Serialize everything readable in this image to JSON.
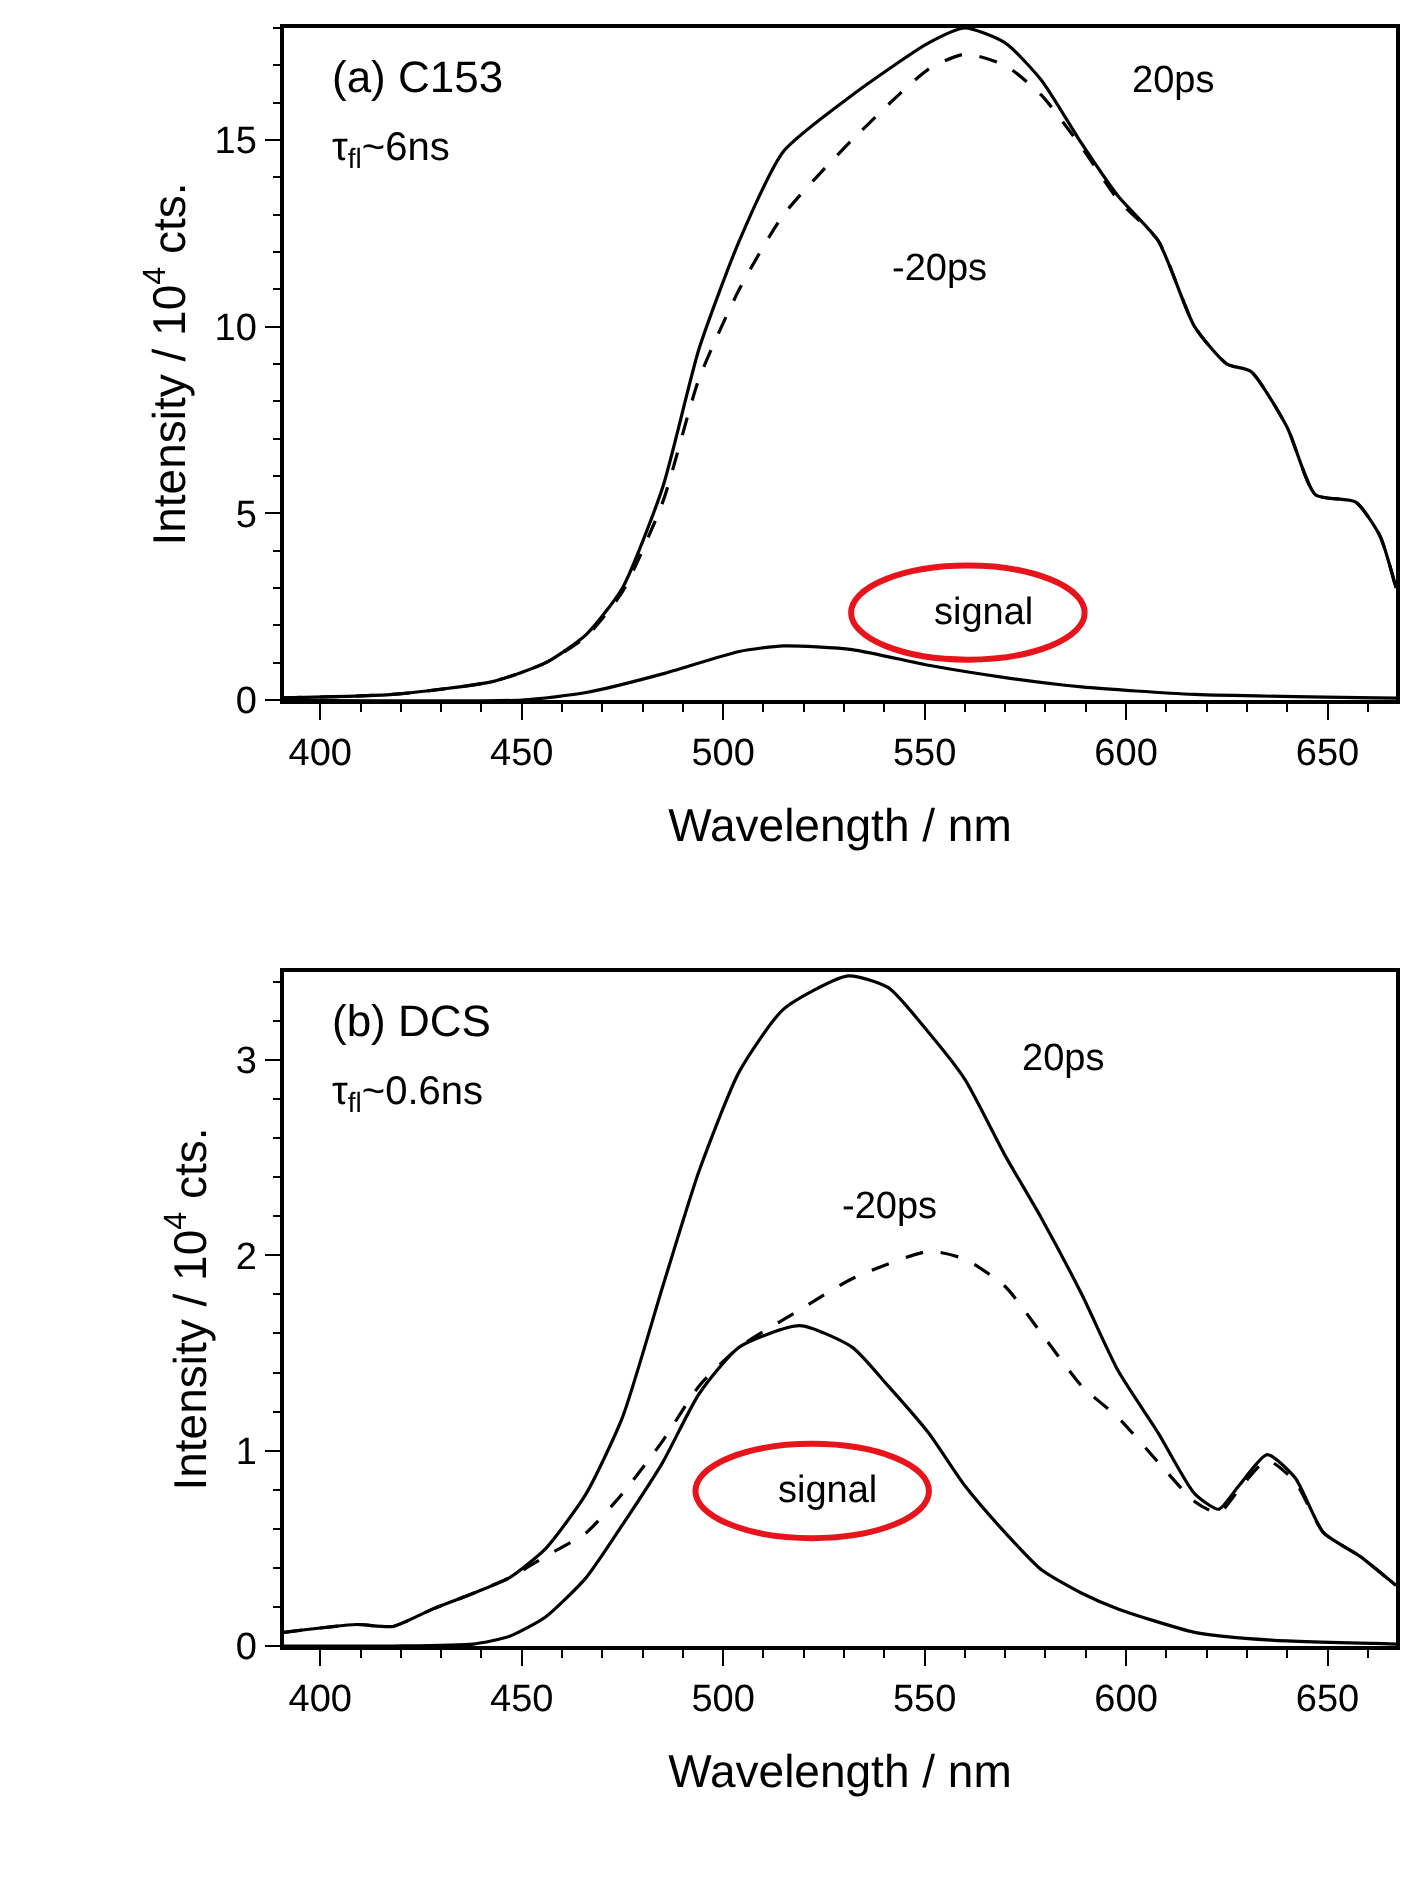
{
  "chart_data": [
    {
      "type": "line",
      "xlabel": "Wavelength / nm",
      "ylabel": "Intensity / 10$^{4}$ cts.",
      "xlim": [
        391,
        667
      ],
      "ylim": [
        0,
        18
      ],
      "xticks": [
        400,
        450,
        500,
        550,
        600,
        650
      ],
      "yticks": [
        0,
        5,
        10,
        15
      ],
      "annotations": [
        "(a) C153",
        "τ$_{fl}$~6ns",
        "20ps",
        "-20ps",
        "signal"
      ],
      "series": [
        {
          "color": "#000000",
          "line_style": "solid",
          "x": [
            391,
            418,
            443,
            456,
            466,
            475,
            485,
            494,
            504,
            515,
            532,
            551,
            560,
            570,
            579,
            589,
            598,
            608,
            617,
            625,
            631,
            640,
            647,
            657,
            663,
            667
          ],
          "values": [
            0.06,
            0.15,
            0.5,
            1.0,
            1.75,
            3.0,
            5.7,
            9.4,
            12.3,
            14.7,
            16.2,
            17.6,
            18.0,
            17.6,
            16.6,
            14.9,
            13.5,
            12.3,
            10.0,
            9.0,
            8.8,
            7.3,
            5.5,
            5.3,
            4.4,
            3.0
          ]
        },
        {
          "color": "#000000",
          "line_style": "dashed",
          "x": [
            391,
            418,
            443,
            456,
            466,
            475,
            485,
            494,
            504,
            515,
            532,
            551,
            560,
            570,
            579,
            589,
            598,
            608,
            617,
            625,
            631,
            640,
            647,
            657,
            663,
            667
          ],
          "values": [
            0.06,
            0.15,
            0.5,
            1.0,
            1.7,
            2.9,
            5.3,
            8.6,
            11.0,
            13.0,
            15.0,
            16.9,
            17.3,
            17.0,
            16.2,
            14.8,
            13.4,
            12.3,
            10.0,
            9.0,
            8.8,
            7.3,
            5.5,
            5.3,
            4.4,
            3.0
          ]
        },
        {
          "color": "#000000",
          "line_style": "solid",
          "x": [
            391,
            450,
            466,
            485,
            504,
            515,
            532,
            551,
            570,
            589,
            617,
            667
          ],
          "values": [
            0,
            0,
            0.2,
            0.7,
            1.3,
            1.45,
            1.35,
            0.93,
            0.6,
            0.35,
            0.15,
            0.05
          ]
        }
      ]
    },
    {
      "type": "line",
      "xlabel": "Wavelength / nm",
      "ylabel": "Intensity / 10$^{4}$ cts.",
      "xlim": [
        391,
        667
      ],
      "ylim": [
        0,
        3.45
      ],
      "xticks": [
        400,
        450,
        500,
        550,
        600,
        650
      ],
      "yticks": [
        0,
        1,
        2,
        3
      ],
      "annotations": [
        "(b) DCS",
        "τ$_{fl}$~0.6ns",
        "20ps",
        "-20ps",
        "signal"
      ],
      "series": [
        {
          "color": "#000000",
          "line_style": "solid",
          "x": [
            391,
            409,
            418,
            428,
            438,
            447,
            456,
            466,
            475,
            485,
            494,
            504,
            515,
            531,
            541,
            551,
            560,
            570,
            579,
            589,
            598,
            608,
            617,
            623,
            628,
            635,
            642,
            649,
            658,
            667
          ],
          "values": [
            0.07,
            0.11,
            0.1,
            0.19,
            0.27,
            0.35,
            0.5,
            0.78,
            1.17,
            1.84,
            2.43,
            2.94,
            3.26,
            3.43,
            3.37,
            3.14,
            2.9,
            2.51,
            2.19,
            1.8,
            1.41,
            1.09,
            0.78,
            0.7,
            0.82,
            0.98,
            0.86,
            0.58,
            0.46,
            0.31
          ]
        },
        {
          "color": "#000000",
          "line_style": "dashed",
          "x": [
            391,
            409,
            418,
            428,
            438,
            447,
            456,
            466,
            475,
            485,
            494,
            504,
            519,
            532,
            551,
            560,
            570,
            579,
            589,
            598,
            608,
            617,
            623,
            628,
            635,
            642,
            649,
            658,
            667
          ],
          "values": [
            0.07,
            0.11,
            0.1,
            0.19,
            0.27,
            0.35,
            0.46,
            0.58,
            0.78,
            1.05,
            1.33,
            1.53,
            1.72,
            1.88,
            2.02,
            1.98,
            1.84,
            1.6,
            1.33,
            1.17,
            0.94,
            0.74,
            0.68,
            0.8,
            0.95,
            0.84,
            0.58,
            0.46,
            0.31
          ]
        },
        {
          "color": "#000000",
          "line_style": "solid",
          "x": [
            391,
            418,
            438,
            447,
            456,
            466,
            475,
            485,
            494,
            504,
            519,
            532,
            541,
            551,
            560,
            570,
            579,
            589,
            598,
            617,
            636,
            667
          ],
          "values": [
            0,
            0,
            0.01,
            0.05,
            0.15,
            0.35,
            0.62,
            0.94,
            1.29,
            1.53,
            1.64,
            1.53,
            1.33,
            1.09,
            0.82,
            0.58,
            0.39,
            0.27,
            0.19,
            0.07,
            0.03,
            0.01
          ]
        }
      ]
    }
  ]
}
